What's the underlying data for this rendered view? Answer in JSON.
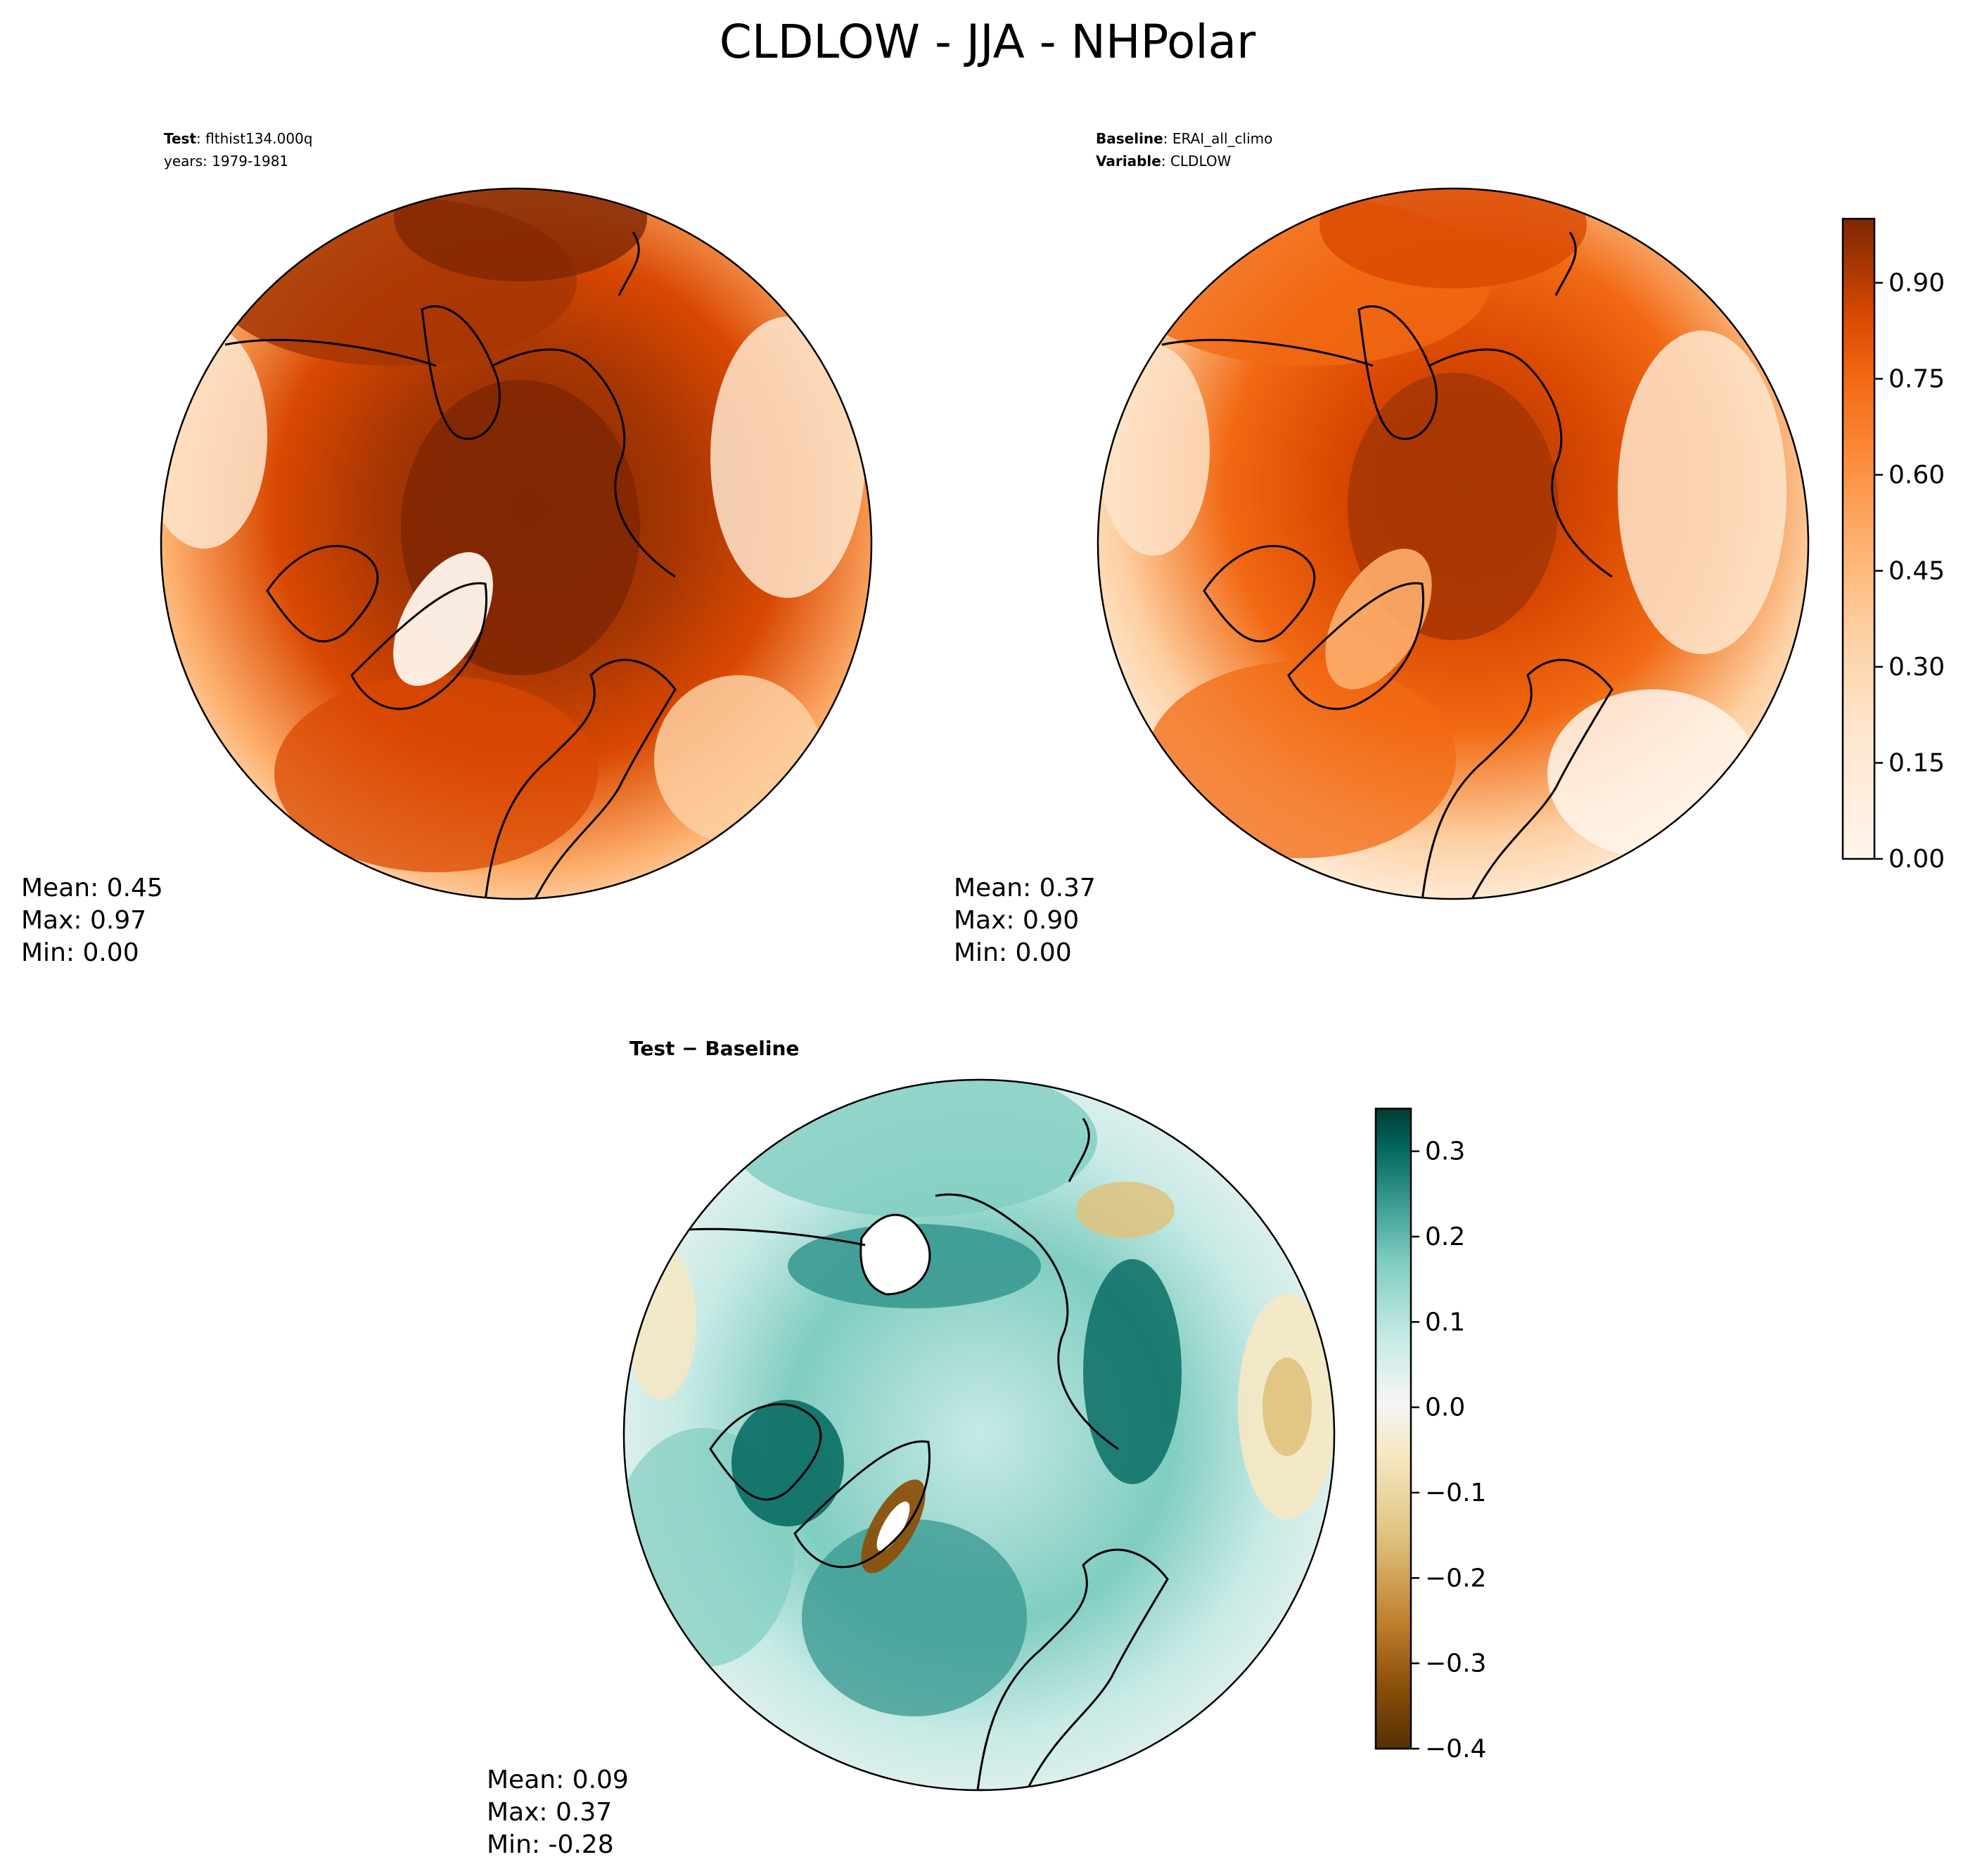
{
  "figure": {
    "title": "CLDLOW - JJA - NHPolar"
  },
  "panels": {
    "test": {
      "label1_key": "Test",
      "label1_value": "flthist134.000q",
      "label2": "years: 1979-1981",
      "stats": {
        "mean": "Mean:  0.45",
        "max": "Max:  0.97",
        "min": "Min:  0.00"
      }
    },
    "baseline": {
      "label1_key": "Baseline",
      "label1_value": "ERAI_all_climo",
      "label2_key": "Variable",
      "label2_value": "CLDLOW",
      "stats": {
        "mean": "Mean:  0.37",
        "max": "Max:  0.90",
        "min": "Min:  0.00"
      }
    },
    "diff": {
      "title": "Test − Baseline",
      "stats": {
        "mean": "Mean:  0.09",
        "max": "Max:  0.37",
        "min": "Min: -0.28"
      }
    }
  },
  "colors": {
    "orange_scale": [
      "#fff5eb",
      "#fee6ce",
      "#fdd0a2",
      "#fdae6b",
      "#fd8d3c",
      "#f16913",
      "#d94801",
      "#a63603",
      "#7f2704"
    ],
    "brbg_scale": [
      "#543005",
      "#8c510a",
      "#bf812d",
      "#dfc27d",
      "#f6e8c3",
      "#f5f5f5",
      "#c7eae5",
      "#80cdc1",
      "#35978f",
      "#01665e",
      "#003c30"
    ],
    "land_outline": "#000000"
  },
  "chart_data": [
    {
      "type": "heatmap",
      "name": "test_map",
      "projection": "north-polar-stereographic",
      "variable": "CLDLOW",
      "season": "JJA",
      "colorbar": "shared-with-baseline",
      "summary": {
        "mean": 0.45,
        "max": 0.97,
        "min": 0.0
      }
    },
    {
      "type": "heatmap",
      "name": "baseline_map",
      "projection": "north-polar-stereographic",
      "variable": "CLDLOW",
      "season": "JJA",
      "colorbar": {
        "range": [
          0.0,
          1.0
        ],
        "tick_values": [
          0.0,
          0.15,
          0.3,
          0.45,
          0.6,
          0.75,
          0.9
        ],
        "tick_labels": [
          "0.00",
          "0.15",
          "0.30",
          "0.45",
          "0.60",
          "0.75",
          "0.90"
        ],
        "levels": 20
      },
      "summary": {
        "mean": 0.37,
        "max": 0.9,
        "min": 0.0
      }
    },
    {
      "type": "heatmap",
      "name": "difference_map",
      "projection": "north-polar-stereographic",
      "variable": "CLDLOW",
      "season": "JJA",
      "colorbar": {
        "range": [
          -0.4,
          0.35
        ],
        "tick_values": [
          0.3,
          0.2,
          0.1,
          0.0,
          -0.1,
          -0.2,
          -0.3,
          -0.4
        ],
        "tick_labels": [
          "0.3",
          "0.2",
          "0.1",
          "0.0",
          "−0.1",
          "−0.2",
          "−0.3",
          "−0.4"
        ],
        "levels": 15
      },
      "summary": {
        "mean": 0.09,
        "max": 0.37,
        "min": -0.28
      }
    }
  ]
}
